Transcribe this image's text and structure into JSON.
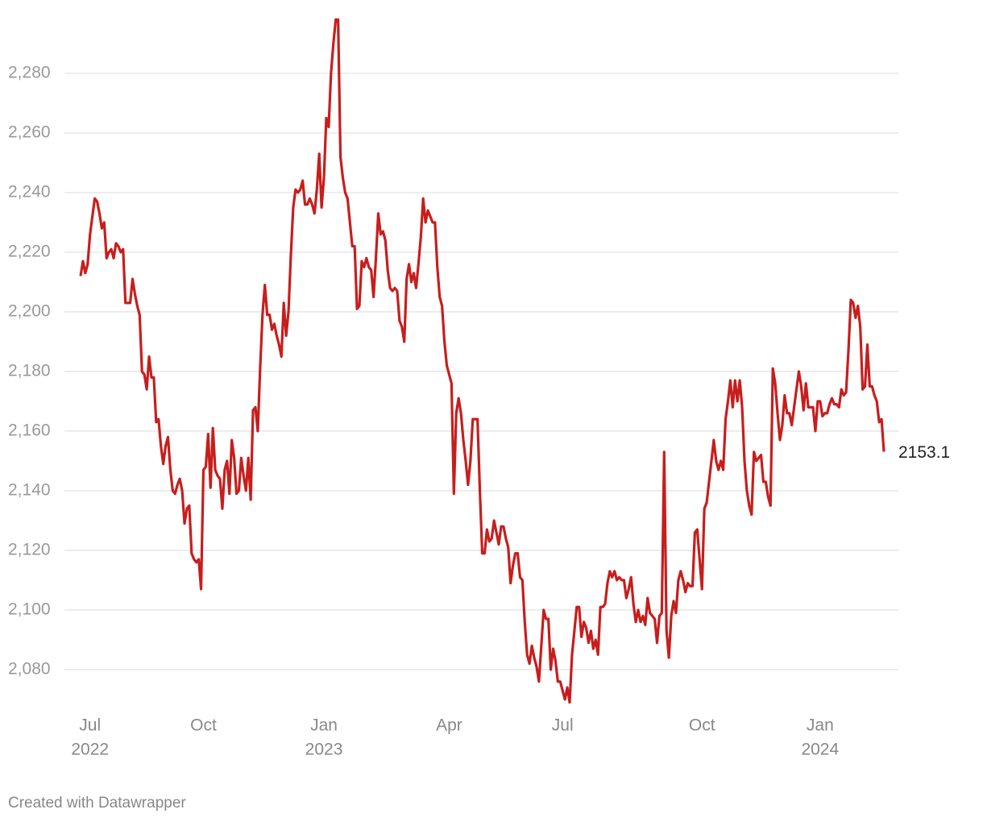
{
  "chart_data": {
    "type": "line",
    "series": [
      {
        "color": "#c71e1d",
        "values": [
          2212,
          2217,
          2213,
          2216,
          2226,
          2232,
          2238,
          2237,
          2233,
          2228,
          2230,
          2218,
          2220,
          2221,
          2218,
          2223,
          2222,
          2220,
          2221,
          2203,
          2203,
          2203,
          2211,
          2206,
          2202,
          2199,
          2180,
          2179,
          2174,
          2185,
          2178,
          2178,
          2163,
          2164,
          2155,
          2149,
          2155,
          2158,
          2147,
          2140,
          2139,
          2142,
          2144,
          2140,
          2129,
          2134,
          2135,
          2119,
          2117,
          2116,
          2117,
          2107,
          2147,
          2148,
          2159,
          2141,
          2161,
          2147,
          2145,
          2144,
          2134,
          2147,
          2150,
          2139,
          2157,
          2151,
          2139,
          2140,
          2151,
          2145,
          2140,
          2151,
          2137,
          2167,
          2168,
          2160,
          2181,
          2199,
          2209,
          2199,
          2199,
          2194,
          2196,
          2192,
          2189,
          2185,
          2203,
          2192,
          2200,
          2219,
          2235,
          2241,
          2240,
          2241,
          2244,
          2236,
          2236,
          2238,
          2236,
          2233,
          2241,
          2253,
          2235,
          2245,
          2265,
          2262,
          2280,
          2290,
          2298,
          2298,
          2252,
          2245,
          2240,
          2238,
          2230,
          2222,
          2222,
          2201,
          2202,
          2217,
          2215,
          2218,
          2215,
          2214,
          2205,
          2218,
          2233,
          2226,
          2227,
          2224,
          2214,
          2208,
          2207,
          2208,
          2207,
          2197,
          2195,
          2190,
          2211,
          2216,
          2210,
          2213,
          2208,
          2216,
          2225,
          2238,
          2230,
          2234,
          2232,
          2230,
          2230,
          2215,
          2205,
          2202,
          2190,
          2182,
          2179,
          2176,
          2139,
          2166,
          2171,
          2166,
          2157,
          2150,
          2142,
          2150,
          2164,
          2164,
          2164,
          2140,
          2119,
          2119,
          2127,
          2123,
          2124,
          2130,
          2126,
          2122,
          2128,
          2128,
          2124,
          2121,
          2109,
          2115,
          2119,
          2119,
          2111,
          2110,
          2096,
          2085,
          2082,
          2088,
          2084,
          2081,
          2076,
          2088,
          2100,
          2097,
          2097,
          2080,
          2087,
          2083,
          2076,
          2076,
          2073,
          2070,
          2074,
          2069,
          2085,
          2093,
          2101,
          2101,
          2091,
          2096,
          2094,
          2089,
          2093,
          2087,
          2090,
          2085,
          2101,
          2101,
          2102,
          2109,
          2113,
          2111,
          2113,
          2110,
          2111,
          2110,
          2110,
          2104,
          2107,
          2111,
          2102,
          2096,
          2100,
          2096,
          2098,
          2095,
          2104,
          2099,
          2098,
          2097,
          2089,
          2098,
          2099,
          2153,
          2093,
          2084,
          2098,
          2103,
          2099,
          2110,
          2113,
          2110,
          2106,
          2109,
          2108,
          2108,
          2126,
          2127,
          2117,
          2107,
          2134,
          2136,
          2143,
          2150,
          2157,
          2150,
          2147,
          2150,
          2147,
          2164,
          2170,
          2177,
          2168,
          2177,
          2170,
          2177,
          2168,
          2150,
          2140,
          2135,
          2132,
          2153,
          2150,
          2151,
          2152,
          2143,
          2143,
          2138,
          2135,
          2181,
          2176,
          2166,
          2157,
          2162,
          2172,
          2166,
          2166,
          2162,
          2168,
          2174,
          2180,
          2175,
          2167,
          2176,
          2168,
          2168,
          2168,
          2160,
          2170,
          2170,
          2165,
          2166,
          2166,
          2169,
          2171,
          2169,
          2169,
          2168,
          2174,
          2172,
          2173,
          2187,
          2204,
          2203,
          2198,
          2202,
          2195,
          2174,
          2175,
          2189,
          2175,
          2175,
          2172,
          2170,
          2163,
          2164,
          2153.1
        ]
      }
    ],
    "ylim": [
      2067,
      2299
    ],
    "yticks": [
      {
        "value": 2080,
        "label": "2,080"
      },
      {
        "value": 2100,
        "label": "2,100"
      },
      {
        "value": 2120,
        "label": "2,120"
      },
      {
        "value": 2140,
        "label": "2,140"
      },
      {
        "value": 2160,
        "label": "2,160"
      },
      {
        "value": 2180,
        "label": "2,180"
      },
      {
        "value": 2200,
        "label": "2,200"
      },
      {
        "value": 2220,
        "label": "2,220"
      },
      {
        "value": 2240,
        "label": "2,240"
      },
      {
        "value": 2260,
        "label": "2,260"
      },
      {
        "value": 2280,
        "label": "2,280"
      }
    ],
    "xticks": [
      {
        "value": 4,
        "label": "Jul",
        "year": "2022"
      },
      {
        "value": 52,
        "label": "Oct"
      },
      {
        "value": 103,
        "label": "Jan",
        "year": "2023"
      },
      {
        "value": 156,
        "label": "Apr"
      },
      {
        "value": 204,
        "label": "Jul"
      },
      {
        "value": 263,
        "label": "Oct"
      },
      {
        "value": 313,
        "label": "Jan",
        "year": "2024"
      }
    ],
    "grid": true,
    "footer": "Created with Datawrapper"
  }
}
